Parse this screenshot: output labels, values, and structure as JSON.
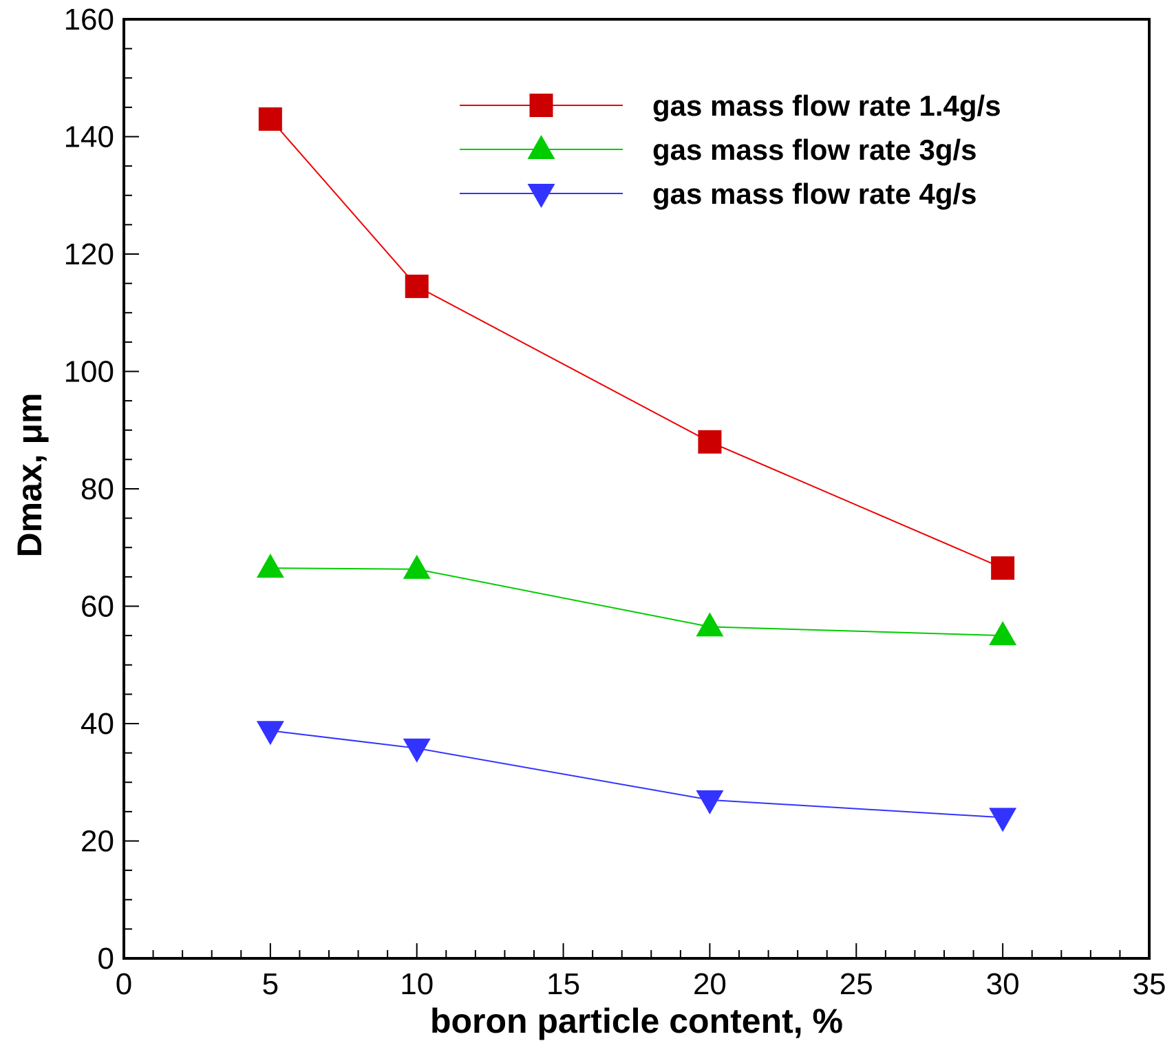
{
  "chart_data": {
    "type": "line",
    "title": "",
    "xlabel": "boron particle content, %",
    "ylabel": "Dmax, μm",
    "xlim": [
      0,
      35
    ],
    "ylim": [
      0,
      160
    ],
    "x_major_ticks": [
      0,
      5,
      10,
      15,
      20,
      25,
      30,
      35
    ],
    "x_tick_labels": [
      "0",
      "5",
      "10",
      "15",
      "20",
      "25",
      "30",
      "35"
    ],
    "x_minor_step": 1,
    "y_major_ticks": [
      0,
      20,
      40,
      60,
      80,
      100,
      120,
      140,
      160
    ],
    "y_tick_labels": [
      "0",
      "20",
      "40",
      "60",
      "80",
      "100",
      "120",
      "140",
      "160"
    ],
    "y_minor_step": 5,
    "grid": false,
    "legend_position": "top-right",
    "series": [
      {
        "name": "gas mass flow rate 1.4g/s",
        "color": "#ee0000",
        "marker_color": "#cc0000",
        "marker": "square",
        "x": [
          5,
          10,
          20,
          30
        ],
        "y": [
          143,
          114.5,
          88,
          66.5
        ]
      },
      {
        "name": "gas mass flow rate 3g/s",
        "color": "#00cc00",
        "marker_color": "#00cc00",
        "marker": "triangle-up",
        "x": [
          5,
          10,
          20,
          30
        ],
        "y": [
          66.5,
          66.3,
          56.5,
          55
        ]
      },
      {
        "name": "gas mass flow rate 4g/s",
        "color": "#3333ff",
        "marker_color": "#3333ff",
        "marker": "triangle-down",
        "x": [
          5,
          10,
          20,
          30
        ],
        "y": [
          38.8,
          35.8,
          27,
          24
        ]
      }
    ]
  }
}
